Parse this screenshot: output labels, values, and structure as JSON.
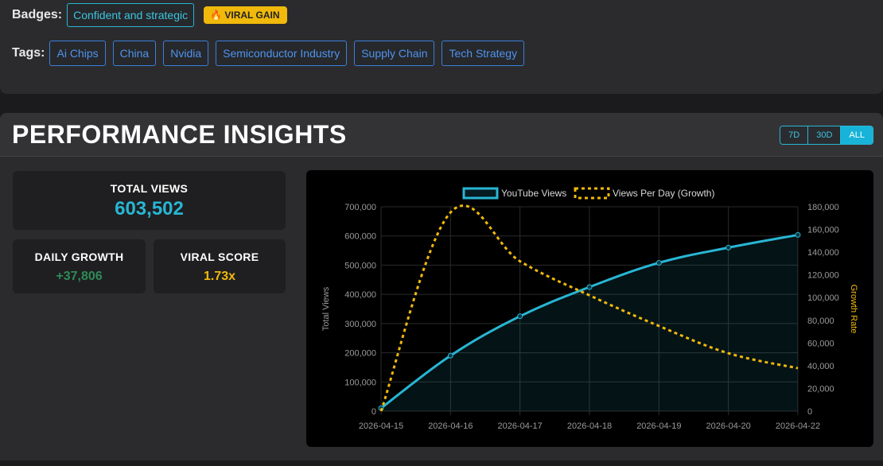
{
  "badges": {
    "label": "Badges:",
    "items": [
      "Confident and strategic"
    ],
    "viral": "🔥 VIRAL GAIN"
  },
  "tags": {
    "label": "Tags:",
    "items": [
      "Ai Chips",
      "China",
      "Nvidia",
      "Semiconductor Industry",
      "Supply Chain",
      "Tech Strategy"
    ]
  },
  "insights": {
    "title": "PERFORMANCE INSIGHTS",
    "ranges": [
      "7D",
      "30D",
      "ALL"
    ],
    "active_range": "ALL",
    "total_views_label": "TOTAL VIEWS",
    "total_views": "603,502",
    "daily_growth_label": "DAILY GROWTH",
    "daily_growth": "+37,806",
    "viral_score_label": "VIRAL SCORE",
    "viral_score": "1.73x"
  },
  "colors": {
    "accent": "#28b6d4",
    "growth": "#2e8b57",
    "viral": "#f0b90b",
    "tag": "#3a7fdb"
  },
  "chart_data": {
    "type": "line",
    "x": [
      "2026-04-15",
      "2026-04-16",
      "2026-04-17",
      "2026-04-18",
      "2026-04-19",
      "2026-04-20",
      "2026-04-22"
    ],
    "series": [
      {
        "name": "YouTube Views",
        "axis": "left",
        "values": [
          10000,
          190000,
          325000,
          425000,
          508000,
          560000,
          603502
        ],
        "color": "#28b6d4",
        "style": "solid-filled"
      },
      {
        "name": "Views Per Day (Growth)",
        "axis": "right",
        "values": [
          0,
          175000,
          132000,
          102000,
          75000,
          51000,
          37806
        ],
        "color": "#f0b90b",
        "style": "dashed"
      }
    ],
    "ylabel": "Total Views",
    "y2label": "Growth Rate",
    "ylim": [
      0,
      700000
    ],
    "y2lim": [
      0,
      180000
    ],
    "yticks": [
      "0",
      "100,000",
      "200,000",
      "300,000",
      "400,000",
      "500,000",
      "600,000",
      "700,000"
    ],
    "y2ticks": [
      "0",
      "20,000",
      "40,000",
      "60,000",
      "80,000",
      "100,000",
      "120,000",
      "140,000",
      "160,000",
      "180,000"
    ],
    "grid": true,
    "legend": "top-center"
  }
}
